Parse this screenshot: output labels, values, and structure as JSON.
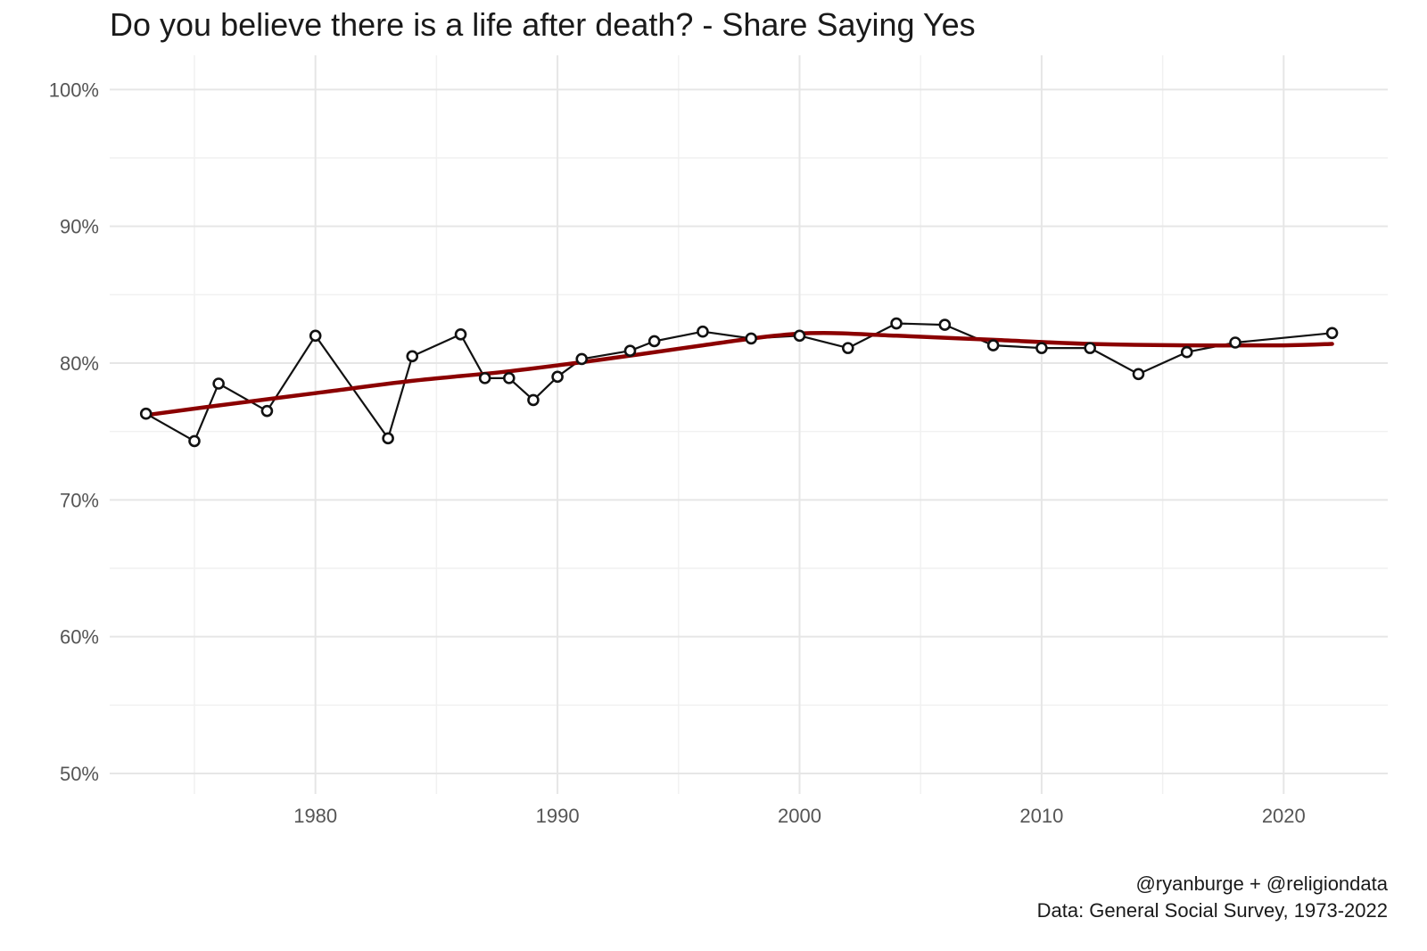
{
  "chart_data": {
    "type": "line",
    "title": "Do you believe there is a life after death? - Share Saying Yes",
    "xlabel": "",
    "ylabel": "",
    "xlim": [
      1971.5,
      2024.3
    ],
    "ylim": [
      48.5,
      102.5
    ],
    "x_ticks": [
      {
        "value": 1980,
        "label": "1980"
      },
      {
        "value": 1990,
        "label": "1990"
      },
      {
        "value": 2000,
        "label": "2000"
      },
      {
        "value": 2010,
        "label": "2010"
      },
      {
        "value": 2020,
        "label": "2020"
      }
    ],
    "y_ticks": [
      {
        "value": 50,
        "label": "50%"
      },
      {
        "value": 60,
        "label": "60%"
      },
      {
        "value": 70,
        "label": "70%"
      },
      {
        "value": 80,
        "label": "80%"
      },
      {
        "value": 90,
        "label": "90%"
      },
      {
        "value": 100,
        "label": "100%"
      }
    ],
    "grid": true,
    "legend": "none",
    "series": [
      {
        "kind": "observed",
        "color": "#111111",
        "marker": "open-circle",
        "x": [
          1973,
          1975,
          1976,
          1978,
          1980,
          1983,
          1984,
          1986,
          1987,
          1988,
          1989,
          1990,
          1991,
          1993,
          1994,
          1996,
          1998,
          2000,
          2002,
          2004,
          2006,
          2008,
          2010,
          2012,
          2014,
          2016,
          2018,
          2022
        ],
        "values": [
          76.3,
          74.3,
          78.5,
          76.5,
          82.0,
          74.5,
          80.5,
          82.1,
          78.9,
          78.9,
          77.3,
          79.0,
          80.3,
          80.9,
          81.6,
          82.3,
          81.8,
          82.0,
          81.1,
          82.9,
          82.8,
          81.3,
          81.1,
          81.1,
          79.2,
          80.8,
          81.5,
          82.2
        ]
      },
      {
        "kind": "trend",
        "color": "#8b0000",
        "x": [
          1973,
          1976,
          1980,
          1984,
          1988,
          1992,
          1996,
          1999,
          2001,
          2004,
          2008,
          2012,
          2016,
          2020,
          2022
        ],
        "values": [
          76.2,
          76.9,
          77.8,
          78.7,
          79.4,
          80.3,
          81.3,
          82.0,
          82.2,
          82.0,
          81.7,
          81.4,
          81.3,
          81.3,
          81.4
        ]
      }
    ]
  },
  "caption": {
    "line1": "@ryanburge + @religiondata",
    "line2": "Data: General Social Survey, 1973-2022"
  }
}
